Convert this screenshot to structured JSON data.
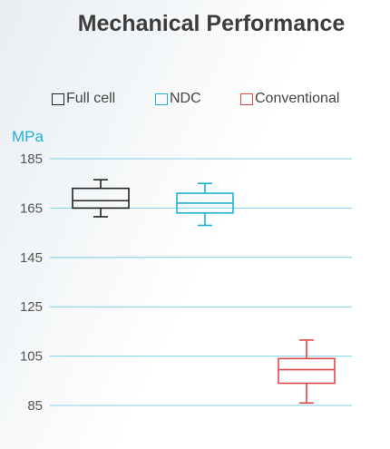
{
  "page": {
    "title": "Mechanical Performance"
  },
  "chart_data": {
    "type": "box",
    "title": "Mechanical Performance",
    "ylabel": "MPa",
    "ylim": [
      85,
      185
    ],
    "yticks": [
      185,
      165,
      145,
      125,
      105,
      85
    ],
    "grid": true,
    "legend_position": "top",
    "series": [
      {
        "name": "Full cell",
        "color": "#222222",
        "min": 161.5,
        "q1": 165,
        "median": 168,
        "q3": 173,
        "max": 176.5
      },
      {
        "name": "NDC",
        "color": "#1fb2d6",
        "min": 158,
        "q1": 163,
        "median": 167,
        "q3": 171,
        "max": 175
      },
      {
        "name": "Conventional",
        "color": "#e04848",
        "min": 86,
        "q1": 94,
        "median": 99.5,
        "q3": 104,
        "max": 111.5
      }
    ]
  }
}
